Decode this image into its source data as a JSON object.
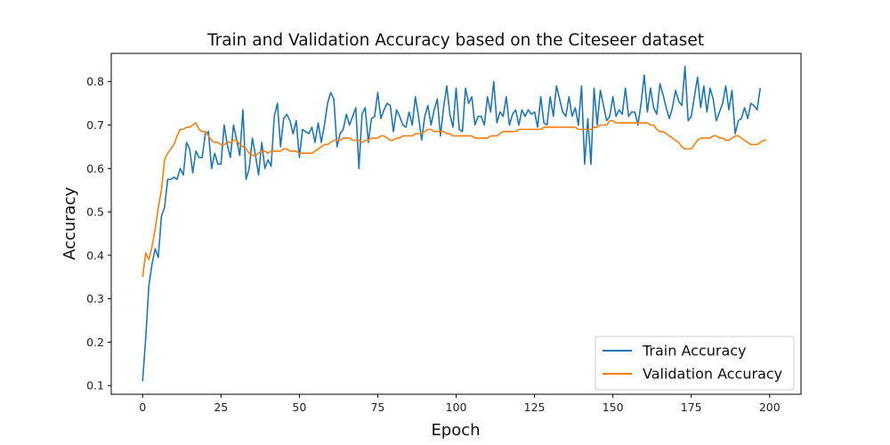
{
  "chart_data": {
    "type": "line",
    "title": "Train and Validation Accuracy based on the Citeseer dataset",
    "xlabel": "Epoch",
    "ylabel": "Accuracy",
    "xlim": [
      -10,
      210
    ],
    "ylim": [
      0.08,
      0.865
    ],
    "xticks": [
      0,
      25,
      50,
      75,
      100,
      125,
      150,
      175,
      200
    ],
    "yticks": [
      0.1,
      0.2,
      0.3,
      0.4,
      0.5,
      0.6,
      0.7,
      0.8
    ],
    "grid": false,
    "legend": "bottom-right",
    "series": [
      {
        "name": "Train Accuracy",
        "color": "#1f77b4",
        "values": [
          0.11,
          0.21,
          0.33,
          0.38,
          0.415,
          0.395,
          0.49,
          0.51,
          0.575,
          0.575,
          0.58,
          0.575,
          0.6,
          0.585,
          0.66,
          0.645,
          0.59,
          0.64,
          0.625,
          0.625,
          0.68,
          0.685,
          0.6,
          0.635,
          0.61,
          0.61,
          0.7,
          0.655,
          0.625,
          0.7,
          0.665,
          0.63,
          0.735,
          0.575,
          0.6,
          0.67,
          0.63,
          0.585,
          0.66,
          0.6,
          0.62,
          0.605,
          0.72,
          0.75,
          0.65,
          0.715,
          0.725,
          0.71,
          0.68,
          0.71,
          0.625,
          0.69,
          0.685,
          0.68,
          0.695,
          0.66,
          0.705,
          0.66,
          0.7,
          0.75,
          0.775,
          0.76,
          0.65,
          0.68,
          0.69,
          0.725,
          0.7,
          0.72,
          0.74,
          0.6,
          0.725,
          0.74,
          0.66,
          0.715,
          0.72,
          0.775,
          0.715,
          0.735,
          0.75,
          0.745,
          0.685,
          0.735,
          0.72,
          0.7,
          0.695,
          0.73,
          0.7,
          0.765,
          0.72,
          0.665,
          0.72,
          0.745,
          0.7,
          0.735,
          0.76,
          0.675,
          0.74,
          0.79,
          0.725,
          0.695,
          0.785,
          0.69,
          0.685,
          0.785,
          0.75,
          0.765,
          0.7,
          0.72,
          0.72,
          0.7,
          0.765,
          0.73,
          0.8,
          0.705,
          0.73,
          0.72,
          0.765,
          0.7,
          0.725,
          0.735,
          0.7,
          0.735,
          0.72,
          0.735,
          0.725,
          0.73,
          0.695,
          0.765,
          0.705,
          0.7,
          0.765,
          0.72,
          0.79,
          0.76,
          0.73,
          0.72,
          0.765,
          0.72,
          0.74,
          0.7,
          0.79,
          0.61,
          0.715,
          0.61,
          0.785,
          0.7,
          0.78,
          0.745,
          0.71,
          0.72,
          0.765,
          0.72,
          0.735,
          0.725,
          0.785,
          0.72,
          0.73,
          0.73,
          0.7,
          0.75,
          0.815,
          0.73,
          0.785,
          0.74,
          0.725,
          0.795,
          0.77,
          0.74,
          0.715,
          0.74,
          0.78,
          0.755,
          0.745,
          0.835,
          0.71,
          0.72,
          0.765,
          0.81,
          0.74,
          0.79,
          0.73,
          0.785,
          0.76,
          0.71,
          0.73,
          0.75,
          0.79,
          0.735,
          0.78,
          0.68,
          0.71,
          0.715,
          0.74,
          0.715,
          0.75,
          0.745,
          0.735,
          0.785
        ]
      },
      {
        "name": "Validation Accuracy",
        "color": "#ff7f0e",
        "values": [
          0.35,
          0.405,
          0.39,
          0.42,
          0.46,
          0.51,
          0.55,
          0.62,
          0.635,
          0.645,
          0.655,
          0.675,
          0.69,
          0.69,
          0.695,
          0.695,
          0.7,
          0.705,
          0.69,
          0.685,
          0.685,
          0.675,
          0.665,
          0.66,
          0.66,
          0.655,
          0.655,
          0.66,
          0.66,
          0.665,
          0.665,
          0.655,
          0.65,
          0.645,
          0.635,
          0.63,
          0.63,
          0.635,
          0.64,
          0.64,
          0.635,
          0.64,
          0.64,
          0.64,
          0.64,
          0.645,
          0.645,
          0.64,
          0.64,
          0.64,
          0.635,
          0.635,
          0.635,
          0.635,
          0.635,
          0.64,
          0.645,
          0.65,
          0.655,
          0.655,
          0.66,
          0.665,
          0.665,
          0.665,
          0.67,
          0.67,
          0.67,
          0.665,
          0.665,
          0.665,
          0.66,
          0.665,
          0.665,
          0.67,
          0.67,
          0.67,
          0.675,
          0.675,
          0.67,
          0.665,
          0.665,
          0.67,
          0.67,
          0.675,
          0.675,
          0.675,
          0.675,
          0.68,
          0.68,
          0.68,
          0.685,
          0.69,
          0.69,
          0.685,
          0.685,
          0.685,
          0.685,
          0.68,
          0.68,
          0.675,
          0.675,
          0.675,
          0.675,
          0.675,
          0.675,
          0.675,
          0.67,
          0.67,
          0.67,
          0.67,
          0.67,
          0.675,
          0.675,
          0.675,
          0.68,
          0.685,
          0.685,
          0.685,
          0.685,
          0.685,
          0.69,
          0.69,
          0.69,
          0.69,
          0.69,
          0.69,
          0.69,
          0.69,
          0.695,
          0.695,
          0.695,
          0.695,
          0.695,
          0.695,
          0.695,
          0.695,
          0.695,
          0.695,
          0.695,
          0.69,
          0.69,
          0.69,
          0.69,
          0.69,
          0.695,
          0.695,
          0.7,
          0.7,
          0.7,
          0.71,
          0.71,
          0.705,
          0.705,
          0.705,
          0.705,
          0.705,
          0.705,
          0.705,
          0.705,
          0.705,
          0.705,
          0.705,
          0.7,
          0.7,
          0.69,
          0.685,
          0.685,
          0.68,
          0.675,
          0.67,
          0.665,
          0.66,
          0.65,
          0.645,
          0.645,
          0.645,
          0.655,
          0.665,
          0.67,
          0.67,
          0.67,
          0.67,
          0.675,
          0.675,
          0.67,
          0.67,
          0.665,
          0.665,
          0.67,
          0.675,
          0.675,
          0.67,
          0.665,
          0.66,
          0.655,
          0.655,
          0.655,
          0.66,
          0.665,
          0.665
        ]
      }
    ]
  }
}
